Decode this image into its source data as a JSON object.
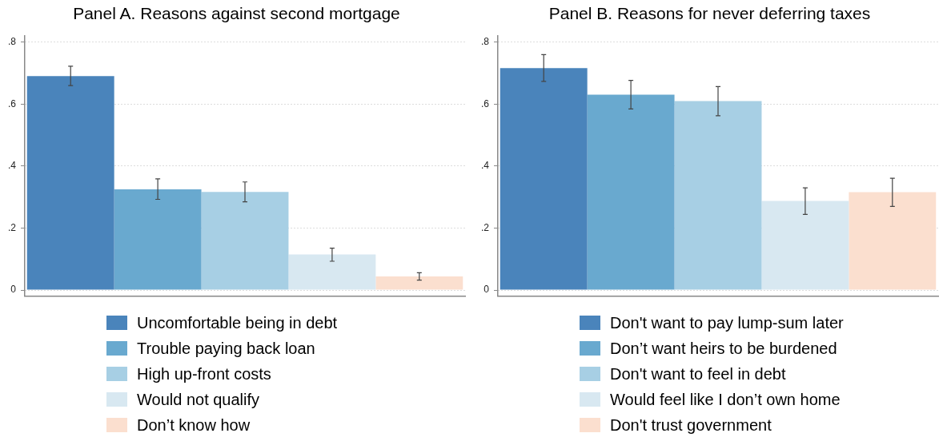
{
  "chart_data": [
    {
      "type": "bar",
      "title": "Panel A. Reasons against second mortgage",
      "categories": [
        null
      ],
      "ylim": [
        -0.02,
        0.82
      ],
      "yticks": [
        {
          "value": 0,
          "label": "0"
        },
        {
          "value": 0.2,
          "label": ".2"
        },
        {
          "value": 0.4,
          "label": ".4"
        },
        {
          "value": 0.6,
          "label": ".6"
        },
        {
          "value": 0.8,
          "label": ".8"
        }
      ],
      "grid": "y",
      "legend": "bottom",
      "tick_labels": "y",
      "series": [
        {
          "name": "Uncomfortable being in debt",
          "color": "#4a84bb",
          "values": [
            0.691
          ],
          "errors": [
            [
              0.66,
              0.723
            ]
          ]
        },
        {
          "name": "Trouble paying back loan",
          "color": "#69a9cf",
          "values": [
            0.325
          ],
          "errors": [
            [
              0.293,
              0.359
            ]
          ]
        },
        {
          "name": "High up-front costs",
          "color": "#a7cfe4",
          "values": [
            0.317
          ],
          "errors": [
            [
              0.285,
              0.349
            ]
          ]
        },
        {
          "name": "Would not qualify",
          "color": "#d8e8f1",
          "values": [
            0.115
          ],
          "errors": [
            [
              0.093,
              0.135
            ]
          ]
        },
        {
          "name": "Don’t know how",
          "color": "#fbdfcf",
          "values": [
            0.044
          ],
          "errors": [
            [
              0.032,
              0.056
            ]
          ]
        }
      ]
    },
    {
      "type": "bar",
      "title": "Panel B. Reasons for never deferring taxes",
      "categories": [
        null
      ],
      "ylim": [
        -0.02,
        0.82
      ],
      "yticks": [
        {
          "value": 0,
          "label": "0"
        },
        {
          "value": 0.2,
          "label": ".2"
        },
        {
          "value": 0.4,
          "label": ".4"
        },
        {
          "value": 0.6,
          "label": ".6"
        },
        {
          "value": 0.8,
          "label": ".8"
        }
      ],
      "grid": "y",
      "legend": "bottom",
      "tick_labels": "y",
      "series": [
        {
          "name": "Don't want to pay lump-sum later",
          "color": "#4a84bb",
          "values": [
            0.717
          ],
          "errors": [
            [
              0.674,
              0.76
            ]
          ]
        },
        {
          "name": "Don’t want heirs to be burdened",
          "color": "#69a9cf",
          "values": [
            0.631
          ],
          "errors": [
            [
              0.585,
              0.677
            ]
          ]
        },
        {
          "name": "Don't want to feel in debt",
          "color": "#a7cfe4",
          "values": [
            0.61
          ],
          "errors": [
            [
              0.563,
              0.657
            ]
          ]
        },
        {
          "name": "Would feel like I don’t own home",
          "color": "#d8e8f1",
          "values": [
            0.288
          ],
          "errors": [
            [
              0.244,
              0.33
            ]
          ]
        },
        {
          "name": "Don't trust government",
          "color": "#fbdfcf",
          "values": [
            0.316
          ],
          "errors": [
            [
              0.27,
              0.361
            ]
          ]
        }
      ]
    }
  ]
}
